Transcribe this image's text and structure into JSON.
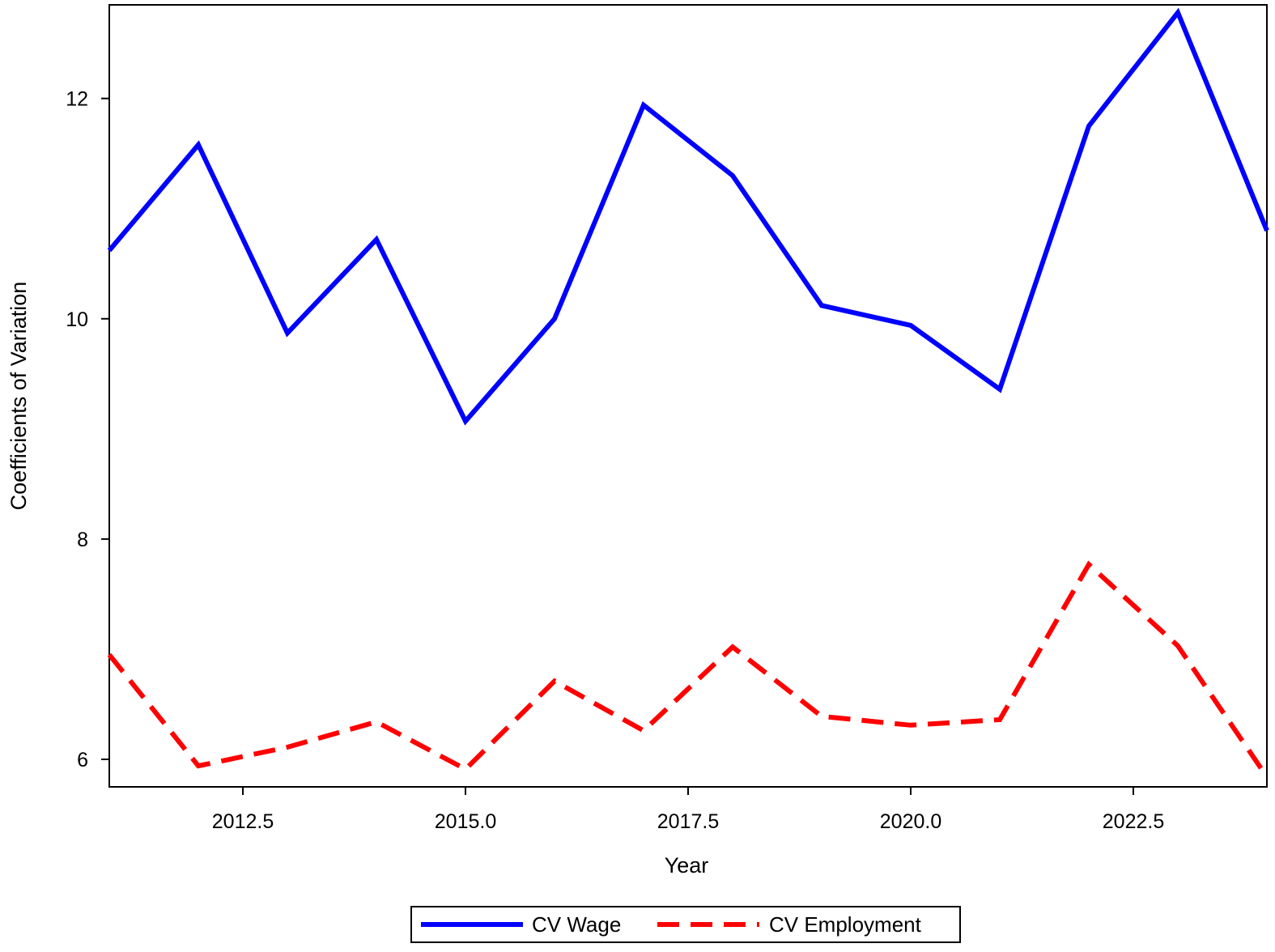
{
  "chart_data": {
    "type": "line",
    "xlabel": "Year",
    "ylabel": "Coefficients of Variation",
    "xlim": [
      2011,
      2024
    ],
    "ylim": [
      5.75,
      12.85
    ],
    "x_ticks": [
      2012.5,
      2015.0,
      2017.5,
      2020.0,
      2022.5
    ],
    "x_tick_labels": [
      "2012.5",
      "2015.0",
      "2017.5",
      "2020.0",
      "2022.5"
    ],
    "y_ticks": [
      6,
      8,
      10,
      12
    ],
    "y_tick_labels": [
      "6",
      "8",
      "10",
      "12"
    ],
    "grid": false,
    "legend_position": "bottom",
    "x": [
      2011,
      2012,
      2013,
      2014,
      2015,
      2016,
      2017,
      2018,
      2019,
      2020,
      2021,
      2022,
      2023,
      2024
    ],
    "series": [
      {
        "name": "CV Wage",
        "color": "#0000ff",
        "style": "solid",
        "values": [
          10.62,
          11.58,
          9.87,
          10.72,
          9.07,
          10.0,
          11.94,
          11.3,
          10.12,
          9.94,
          9.36,
          11.75,
          12.78,
          10.8
        ]
      },
      {
        "name": "CV Employment",
        "color": "#ff0000",
        "style": "dashed",
        "values": [
          6.95,
          5.94,
          6.11,
          6.34,
          5.91,
          6.71,
          6.26,
          7.02,
          6.39,
          6.31,
          6.36,
          7.77,
          7.03,
          5.84
        ]
      }
    ]
  }
}
